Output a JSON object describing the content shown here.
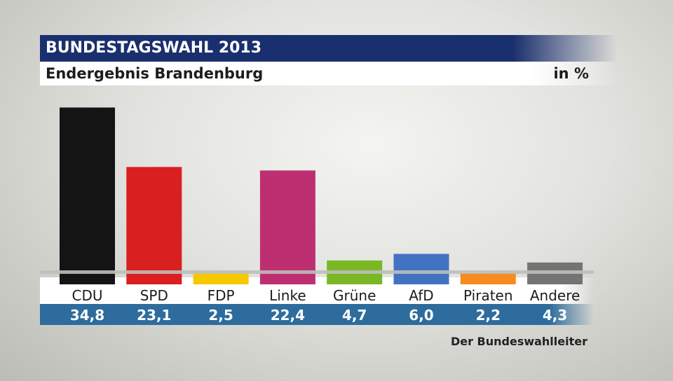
{
  "header": {
    "title": "BUNDESTAGSWAHL 2013",
    "subtitle": "Endergebnis Brandenburg",
    "unit": "in %"
  },
  "source": "Der Bundeswahlleiter",
  "chart_data": {
    "type": "bar",
    "title": "BUNDESTAGSWAHL 2013",
    "subtitle": "Endergebnis Brandenburg",
    "ylabel": "in %",
    "xlabel": "",
    "categories": [
      "CDU",
      "SPD",
      "FDP",
      "Linke",
      "Grüne",
      "AfD",
      "Piraten",
      "Andere"
    ],
    "values": [
      34.8,
      23.1,
      2.5,
      22.4,
      4.7,
      6.0,
      2.2,
      4.3
    ],
    "value_labels": [
      "34,8",
      "23,1",
      "2,5",
      "22,4",
      "4,7",
      "6,0",
      "2,2",
      "4,3"
    ],
    "colors": [
      "#141414",
      "#d91f1f",
      "#f5c800",
      "#be2f72",
      "#79b824",
      "#4273c3",
      "#f68b1f",
      "#747474"
    ],
    "ylim": [
      0,
      35
    ],
    "grid": false,
    "legend": "none"
  }
}
